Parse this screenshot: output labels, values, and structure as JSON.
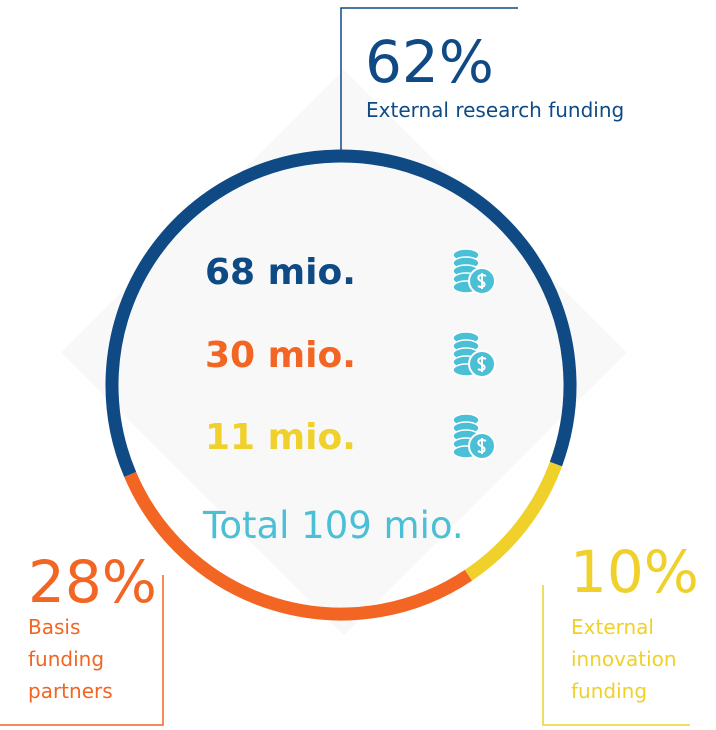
{
  "chart_data": {
    "type": "pie",
    "categories": [
      "External research funding",
      "Basis funding partners",
      "External innovation funding"
    ],
    "values": [
      62,
      28,
      10
    ],
    "value_labels": [
      "62%",
      "28%",
      "10%"
    ],
    "colors": [
      "#0f4a84",
      "#f26522",
      "#f0d02a"
    ],
    "amount_labels": [
      "68 mio.",
      "30 mio.",
      "11 mio."
    ],
    "total_label": "Total 109 mio.",
    "total_color": "#4bbfd6"
  }
}
